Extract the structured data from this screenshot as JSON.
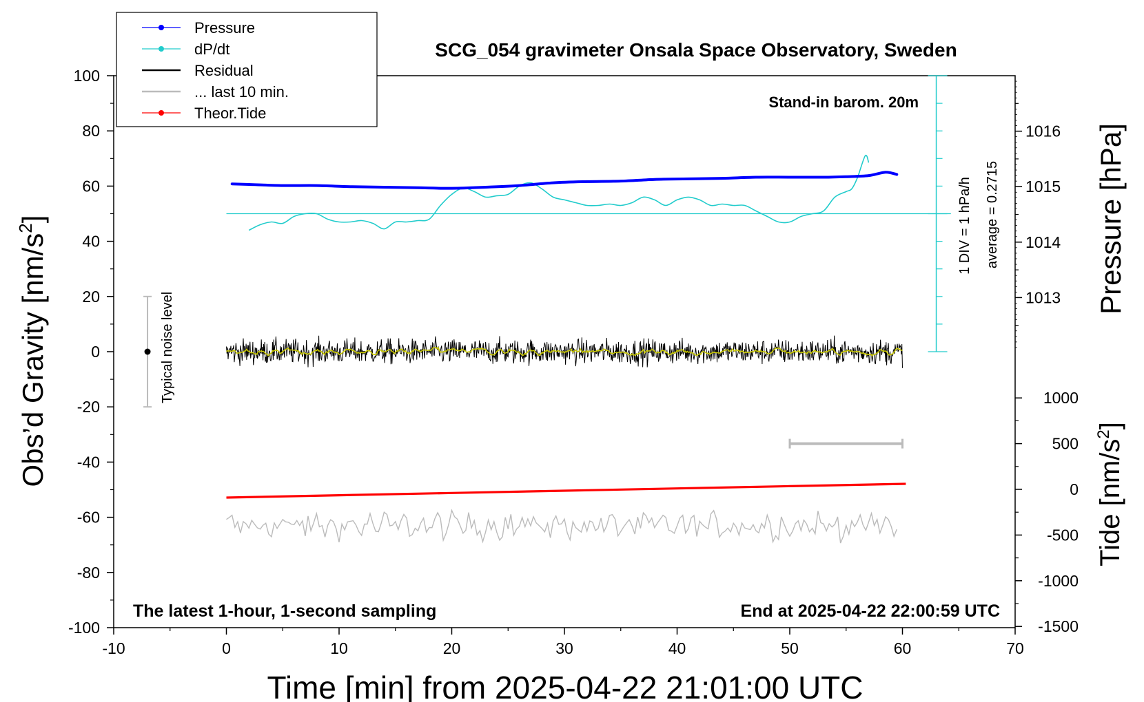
{
  "chart_data": {
    "type": "line",
    "title": "SCG_054 gravimeter Onsala Space Observatory, Sweden",
    "xlabel": "Time [min] from 2025-04-22 21:01:00 UTC",
    "ylabel_left": "Obs’d Gravity [nm/s",
    "ylabel_left_sup": "2",
    "ylabel_left_end": "]",
    "ylabel_right_pressure": "Pressure [hPa]",
    "ylabel_right_tide": "Tide [nm/s",
    "ylabel_right_tide_sup": "2",
    "ylabel_right_tide_end": "]",
    "xlim": [
      -10,
      70
    ],
    "ylim": [
      -100,
      100
    ],
    "pressure_ylim": [
      1012.0,
      1017.0
    ],
    "tide_ylim": [
      -1500,
      1500
    ],
    "grid": false,
    "legend_position": "top-left",
    "x_ticks": [
      "-10",
      "0",
      "10",
      "20",
      "30",
      "40",
      "50",
      "60",
      "70"
    ],
    "y_ticks": [
      "100",
      "80",
      "60",
      "40",
      "20",
      "0",
      "-20",
      "-40",
      "-60",
      "-80",
      "-100"
    ],
    "pressure_ticks": [
      "1016",
      "1015",
      "1014",
      "1013"
    ],
    "tide_ticks": [
      "1000",
      "500",
      "0",
      "-500",
      "-1000",
      "-1500"
    ],
    "annotations": {
      "top_right": "Stand-in barom. 20m",
      "bottom_left": "The latest 1-hour, 1-second sampling",
      "bottom_right": "End at 2025-04-22 22:00:59 UTC",
      "noise": "Typical noise level",
      "div": "1 DIV = 1 hPa/h",
      "average": "average = 0.2715"
    },
    "noise_bar": {
      "x": -7,
      "ymin": -20,
      "ymax": 20,
      "center": 0
    },
    "ten_min_bar": {
      "x0": 50,
      "x1": 60,
      "tide_value": 500
    },
    "dpdt_axis": {
      "x": 63,
      "top_gravity": 100,
      "bottom_gravity": 0,
      "baseline_gravity": 50
    },
    "series": [
      {
        "name": "Pressure",
        "color": "#0000ff",
        "axis": "pressure",
        "points": [
          [
            0.5,
            1015.05
          ],
          [
            2,
            1015.04
          ],
          [
            5,
            1015.02
          ],
          [
            8,
            1015.02
          ],
          [
            11,
            1015.0
          ],
          [
            14,
            1014.99
          ],
          [
            17,
            1014.98
          ],
          [
            20,
            1014.97
          ],
          [
            23,
            1014.99
          ],
          [
            26,
            1015.02
          ],
          [
            29,
            1015.07
          ],
          [
            32,
            1015.09
          ],
          [
            35,
            1015.1
          ],
          [
            38,
            1015.13
          ],
          [
            41,
            1015.14
          ],
          [
            44,
            1015.15
          ],
          [
            47,
            1015.17
          ],
          [
            50,
            1015.17
          ],
          [
            53,
            1015.17
          ],
          [
            55,
            1015.18
          ],
          [
            57,
            1015.2
          ],
          [
            58.5,
            1015.26
          ],
          [
            59.5,
            1015.22
          ]
        ]
      },
      {
        "name": "dP/dt",
        "color": "#22cccc",
        "axis": "gravity",
        "points": [
          [
            2,
            44
          ],
          [
            3,
            46
          ],
          [
            4,
            47
          ],
          [
            5,
            46.5
          ],
          [
            6,
            49
          ],
          [
            7,
            50
          ],
          [
            8,
            50
          ],
          [
            9,
            48
          ],
          [
            10,
            47
          ],
          [
            11,
            47
          ],
          [
            12,
            47.5
          ],
          [
            13,
            46.5
          ],
          [
            14,
            44.5
          ],
          [
            15,
            47
          ],
          [
            16,
            47
          ],
          [
            17,
            47.5
          ],
          [
            18,
            48
          ],
          [
            19,
            53
          ],
          [
            20,
            57
          ],
          [
            21,
            59.3
          ],
          [
            22,
            58
          ],
          [
            23,
            56
          ],
          [
            24,
            56.5
          ],
          [
            25,
            57
          ],
          [
            26,
            60
          ],
          [
            27,
            61.2
          ],
          [
            28,
            59
          ],
          [
            29,
            56
          ],
          [
            30,
            55
          ],
          [
            31,
            54
          ],
          [
            32,
            53
          ],
          [
            33,
            53
          ],
          [
            34,
            53.5
          ],
          [
            35,
            53
          ],
          [
            36,
            54
          ],
          [
            37,
            56
          ],
          [
            38,
            55
          ],
          [
            39,
            53
          ],
          [
            40,
            55
          ],
          [
            41,
            56
          ],
          [
            42,
            55
          ],
          [
            43,
            53
          ],
          [
            44,
            53.5
          ],
          [
            45,
            53
          ],
          [
            46,
            53
          ],
          [
            47,
            51
          ],
          [
            48,
            49
          ],
          [
            49,
            47
          ],
          [
            50,
            47
          ],
          [
            51,
            49
          ],
          [
            52,
            50
          ],
          [
            53,
            51
          ],
          [
            54,
            56
          ],
          [
            55,
            58
          ],
          [
            55.5,
            59
          ],
          [
            56,
            63
          ],
          [
            56.7,
            71
          ],
          [
            57,
            68.5
          ]
        ]
      },
      {
        "name": "Residual",
        "color": "#000000",
        "axis": "gravity",
        "noise_amplitude": 5
      },
      {
        "name": "... last 10 min.",
        "color": "#bbbbbb",
        "axis": "gravity",
        "baseline": -63,
        "noise_amplitude": 4
      },
      {
        "name": "Theor.Tide",
        "color": "#ff0000",
        "axis": "tide",
        "points": [
          [
            0,
            -90
          ],
          [
            10,
            -65
          ],
          [
            20,
            -40
          ],
          [
            30,
            -15
          ],
          [
            40,
            10
          ],
          [
            50,
            35
          ],
          [
            60.3,
            60
          ]
        ]
      }
    ],
    "residual_smoothed_color": "#c8c800"
  }
}
